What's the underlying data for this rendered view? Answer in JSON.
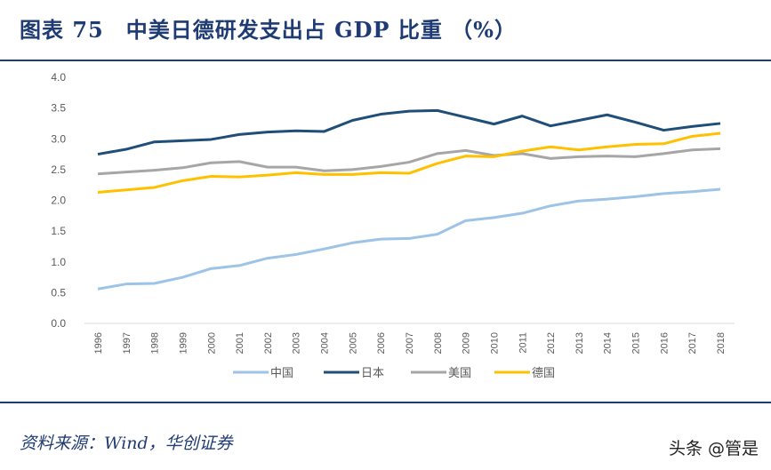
{
  "header": {
    "title": "图表 75　中美日德研发支出占 GDP 比重 （%）"
  },
  "footer": {
    "source": "资料来源：Wind，华创证券",
    "watermark": "头条 @管是"
  },
  "chart_data": {
    "type": "line",
    "title": "图表 75　中美日德研发支出占 GDP 比重 （%）",
    "x": [
      "1996",
      "1997",
      "1998",
      "1999",
      "2000",
      "2001",
      "2002",
      "2003",
      "2004",
      "2005",
      "2006",
      "2007",
      "2008",
      "2009",
      "2010",
      "2011",
      "2012",
      "2013",
      "2014",
      "2015",
      "2016",
      "2017",
      "2018"
    ],
    "ylim": [
      0,
      4.0
    ],
    "yticks": [
      "0.0",
      "0.5",
      "1.0",
      "1.5",
      "2.0",
      "2.5",
      "3.0",
      "3.5",
      "4.0"
    ],
    "grid": false,
    "legend": "bottom",
    "series": [
      {
        "name": "中国",
        "color": "#9dc3e6",
        "values": [
          0.56,
          0.64,
          0.65,
          0.75,
          0.89,
          0.94,
          1.06,
          1.12,
          1.21,
          1.31,
          1.37,
          1.38,
          1.45,
          1.67,
          1.72,
          1.79,
          1.91,
          1.99,
          2.02,
          2.06,
          2.11,
          2.14,
          2.18
        ]
      },
      {
        "name": "日本",
        "color": "#1f4e79",
        "values": [
          2.75,
          2.83,
          2.95,
          2.97,
          2.99,
          3.07,
          3.11,
          3.13,
          3.12,
          3.3,
          3.4,
          3.45,
          3.46,
          3.35,
          3.24,
          3.37,
          3.21,
          3.3,
          3.39,
          3.27,
          3.14,
          3.2,
          3.25
        ]
      },
      {
        "name": "美国",
        "color": "#a6a6a6",
        "values": [
          2.43,
          2.46,
          2.49,
          2.53,
          2.61,
          2.63,
          2.54,
          2.54,
          2.48,
          2.5,
          2.55,
          2.62,
          2.76,
          2.81,
          2.73,
          2.76,
          2.68,
          2.71,
          2.72,
          2.71,
          2.76,
          2.82,
          2.84
        ]
      },
      {
        "name": "德国",
        "color": "#ffc000",
        "values": [
          2.13,
          2.17,
          2.21,
          2.32,
          2.39,
          2.38,
          2.41,
          2.45,
          2.42,
          2.42,
          2.45,
          2.44,
          2.6,
          2.72,
          2.71,
          2.8,
          2.87,
          2.82,
          2.87,
          2.91,
          2.92,
          3.04,
          3.09
        ]
      }
    ]
  }
}
